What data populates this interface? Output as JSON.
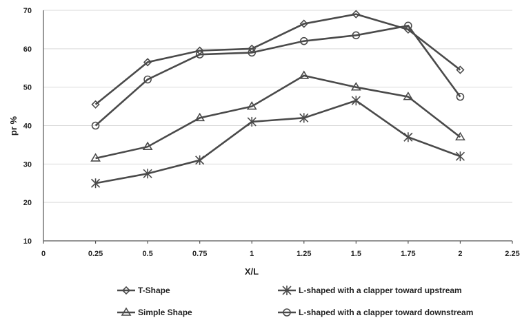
{
  "chart_data": {
    "type": "line",
    "xlabel": "X/L",
    "ylabel": "pr %",
    "xlim": [
      0,
      2.25
    ],
    "ylim": [
      10,
      70
    ],
    "x_ticks": [
      "0",
      "0.25",
      "0.5",
      "0.75",
      "1",
      "1.25",
      "1.5",
      "1.75",
      "2",
      "2.25"
    ],
    "y_ticks": [
      "10",
      "20",
      "30",
      "40",
      "50",
      "60",
      "70"
    ],
    "grid": "horizontal",
    "legend_position": "bottom",
    "x": [
      0.25,
      0.5,
      0.75,
      1,
      1.25,
      1.5,
      1.75,
      2
    ],
    "series": [
      {
        "name": "T-Shape",
        "marker": "diamond",
        "values": [
          45.5,
          56.5,
          59.5,
          60,
          66.5,
          69,
          65,
          54.5
        ]
      },
      {
        "name": "L-shaped  with a clapper toward upstream",
        "marker": "star",
        "values": [
          25,
          27.5,
          31,
          41,
          42,
          46.5,
          37,
          32
        ]
      },
      {
        "name": "Simple Shape",
        "marker": "triangle",
        "values": [
          31.5,
          34.5,
          42,
          45,
          53,
          50,
          47.5,
          37
        ]
      },
      {
        "name": "L-shaped with a clapper toward downstream",
        "marker": "circle",
        "values": [
          40,
          52,
          58.5,
          59,
          62,
          63.5,
          66,
          47.5
        ]
      }
    ]
  }
}
